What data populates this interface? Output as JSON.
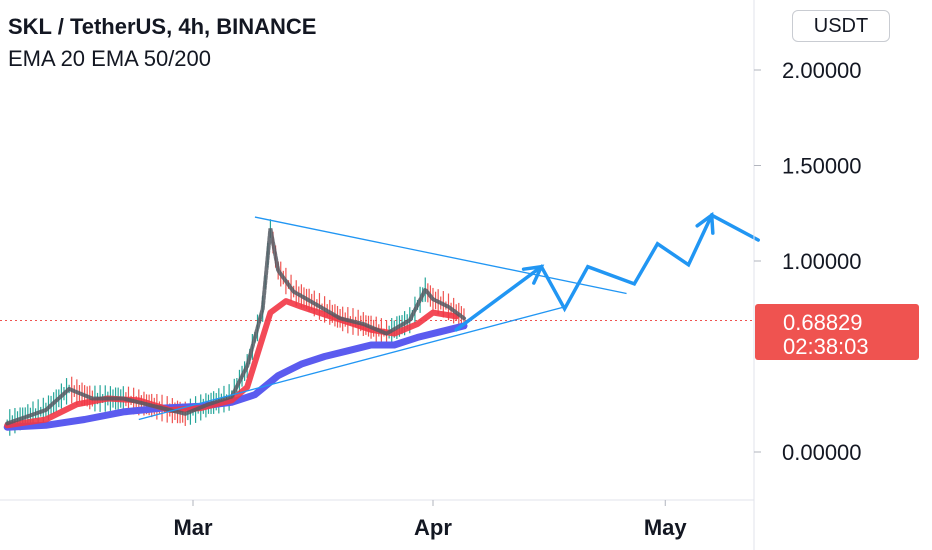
{
  "header": {
    "title": "SKL / TetherUS, 4h, BINANCE",
    "indicators": "EMA 20 EMA 50/200"
  },
  "currency_button": "USDT",
  "price_tag": {
    "price": "0.68829",
    "countdown": "02:38:03",
    "color": "#ef5350"
  },
  "colors": {
    "ema20": "#f23645",
    "ema200": "#5b5bef",
    "trendlines": "#2196f3",
    "projection": "#2196f3",
    "candles_up": "#26a69a",
    "candles_down": "#ef5350"
  },
  "chart_data": {
    "type": "line",
    "symbol": "SKL / TetherUS",
    "timeframe": "4h",
    "exchange": "BINANCE",
    "y_axis": {
      "ticks": [
        {
          "value": 0.0,
          "label": "0.00000"
        },
        {
          "value": 1.0,
          "label": "1.00000"
        },
        {
          "value": 1.5,
          "label": "1.50000"
        },
        {
          "value": 2.0,
          "label": "2.00000"
        }
      ],
      "ylim": [
        -0.25,
        2.3
      ],
      "grid": true
    },
    "x_axis": {
      "ticks": [
        {
          "date": "2021-03-01",
          "label": "Mar"
        },
        {
          "date": "2021-04-01",
          "label": "Apr"
        },
        {
          "date": "2021-05-01",
          "label": "May"
        }
      ],
      "xlim": [
        "2021-02-05",
        "2021-05-12"
      ]
    },
    "last_price": 0.68829,
    "series": [
      {
        "name": "EMA 20",
        "x": [
          "2021-02-05",
          "2021-02-10",
          "2021-02-14",
          "2021-02-18",
          "2021-02-22",
          "2021-02-26",
          "2021-03-02",
          "2021-03-06",
          "2021-03-08",
          "2021-03-10",
          "2021-03-11",
          "2021-03-13",
          "2021-03-15",
          "2021-03-18",
          "2021-03-21",
          "2021-03-24",
          "2021-03-27",
          "2021-03-30",
          "2021-04-01",
          "2021-04-04"
        ],
        "y": [
          0.14,
          0.17,
          0.25,
          0.28,
          0.27,
          0.22,
          0.23,
          0.27,
          0.34,
          0.6,
          0.73,
          0.79,
          0.76,
          0.72,
          0.68,
          0.64,
          0.62,
          0.67,
          0.73,
          0.71
        ]
      },
      {
        "name": "EMA 200",
        "x": [
          "2021-02-05",
          "2021-02-10",
          "2021-02-15",
          "2021-02-20",
          "2021-02-25",
          "2021-03-02",
          "2021-03-06",
          "2021-03-09",
          "2021-03-12",
          "2021-03-15",
          "2021-03-18",
          "2021-03-21",
          "2021-03-24",
          "2021-03-27",
          "2021-03-30",
          "2021-04-02",
          "2021-04-05"
        ],
        "y": [
          0.13,
          0.14,
          0.17,
          0.21,
          0.23,
          0.24,
          0.26,
          0.3,
          0.4,
          0.46,
          0.5,
          0.53,
          0.56,
          0.56,
          0.6,
          0.63,
          0.66
        ]
      },
      {
        "name": "Price",
        "x": [
          "2021-02-05",
          "2021-02-10",
          "2021-02-13",
          "2021-02-16",
          "2021-02-20",
          "2021-02-24",
          "2021-02-28",
          "2021-03-03",
          "2021-03-06",
          "2021-03-08",
          "2021-03-10",
          "2021-03-11",
          "2021-03-12",
          "2021-03-14",
          "2021-03-17",
          "2021-03-20",
          "2021-03-23",
          "2021-03-26",
          "2021-03-29",
          "2021-03-31",
          "2021-04-01",
          "2021-04-03",
          "2021-04-05"
        ],
        "y": [
          0.15,
          0.22,
          0.33,
          0.28,
          0.28,
          0.24,
          0.2,
          0.25,
          0.29,
          0.45,
          0.75,
          1.17,
          0.95,
          0.84,
          0.77,
          0.7,
          0.67,
          0.62,
          0.69,
          0.85,
          0.8,
          0.76,
          0.7
        ]
      }
    ],
    "trendlines": [
      {
        "name": "descending resistance",
        "x": [
          "2021-03-09",
          "2021-04-26"
        ],
        "y": [
          1.23,
          0.83
        ]
      },
      {
        "name": "ascending support",
        "x": [
          "2021-02-22",
          "2021-04-18"
        ],
        "y": [
          0.17,
          0.76
        ]
      }
    ],
    "projection": {
      "x": [
        "2021-04-04",
        "2021-04-15",
        "2021-04-18",
        "2021-04-21",
        "2021-04-27",
        "2021-04-30",
        "2021-05-04",
        "2021-05-07",
        "2021-05-13"
      ],
      "y": [
        0.64,
        0.97,
        0.75,
        0.97,
        0.88,
        1.09,
        0.98,
        1.24,
        1.11
      ]
    }
  }
}
